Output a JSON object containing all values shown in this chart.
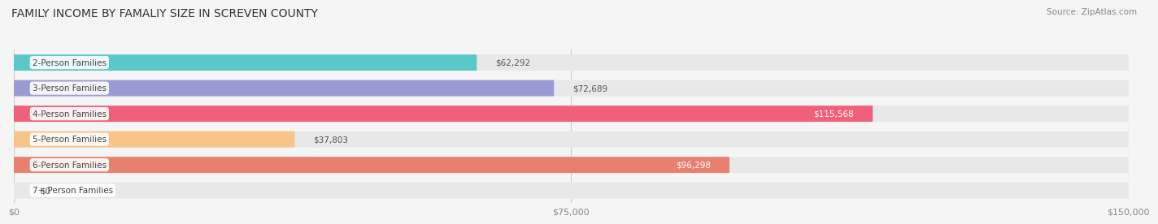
{
  "title": "FAMILY INCOME BY FAMALIY SIZE IN SCREVEN COUNTY",
  "source": "Source: ZipAtlas.com",
  "categories": [
    "2-Person Families",
    "3-Person Families",
    "4-Person Families",
    "5-Person Families",
    "6-Person Families",
    "7+ Person Families"
  ],
  "values": [
    62292,
    72689,
    115568,
    37803,
    96298,
    0
  ],
  "bar_colors": [
    "#5bc8c8",
    "#9b9bd4",
    "#f0607a",
    "#f7c48a",
    "#e88070",
    "#aed6e8"
  ],
  "value_labels": [
    "$62,292",
    "$72,689",
    "$115,568",
    "$37,803",
    "$96,298",
    "$0"
  ],
  "value_inside": [
    false,
    false,
    true,
    false,
    true,
    false
  ],
  "xmax": 150000,
  "xticks": [
    0,
    75000,
    150000
  ],
  "xticklabels": [
    "$0",
    "$75,000",
    "$150,000"
  ],
  "background_color": "#f5f5f5",
  "bar_background": "#e8e8e8"
}
